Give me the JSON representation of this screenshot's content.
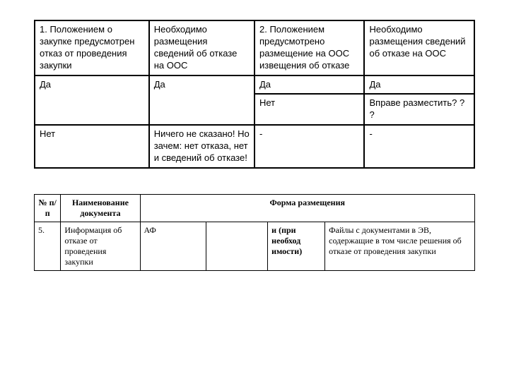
{
  "table1": {
    "r0": {
      "c0": "1. Положением о закупке предусмотрен отказ от проведения закупки",
      "c1": "Необходимо размещения сведений об отказе на ООС",
      "c2": "2. Положением предусмотрено размещение на ООС извещения об отказе",
      "c3": "Необходимо размещения сведений об отказе на ООС"
    },
    "r1": {
      "c0": "Да",
      "c1": "Да",
      "c2": "Да",
      "c3": "Да"
    },
    "r2": {
      "c2": "Нет",
      "c3": "Вправе разместить? ? ?"
    },
    "r3": {
      "c0": "Нет",
      "c1": "Ничего не сказано! Но зачем: нет отказа, нет и сведений об отказе!",
      "c2": "-",
      "c3": "-"
    }
  },
  "table2": {
    "head": {
      "h0": "№ п/п",
      "h1": "Наименование документа",
      "h2": "Форма размещения"
    },
    "row": {
      "c0": "5.",
      "c1": "Информация об отказе от проведения закупки",
      "c2": "АФ",
      "c3": "",
      "c4": "и (при необход имости)",
      "c5": "Файлы с документами в ЭВ, содержащие в том числе решения об отказе от проведения закупки"
    }
  }
}
